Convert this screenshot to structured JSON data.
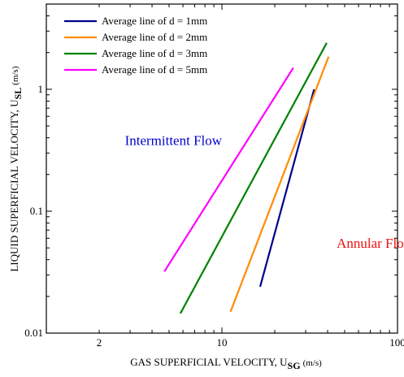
{
  "chart_data": {
    "type": "line",
    "x_scale": "log",
    "y_scale": "log",
    "xlim": [
      1,
      100
    ],
    "ylim": [
      0.01,
      5
    ],
    "x_ticks": [
      {
        "value": 2,
        "label": "2"
      },
      {
        "value": 10,
        "label": "10"
      },
      {
        "value": 100,
        "label": "100"
      }
    ],
    "y_ticks": [
      {
        "value": 0.01,
        "label": "0.01"
      },
      {
        "value": 0.1,
        "label": "0.1"
      },
      {
        "value": 1,
        "label": "1"
      }
    ],
    "xlabel": {
      "main": "GAS SUPERFICIAL VELOCITY, U",
      "sub": "SG",
      "unit": "(m/s)"
    },
    "ylabel": {
      "main": "LIQUID SUPERFICIAL VELOCITY, U",
      "sub": "SL",
      "unit": "(m/s)"
    },
    "grid": false,
    "legend": {
      "position": "top-left",
      "entries": [
        "Average line of d = 1mm",
        "Average line of d = 2mm",
        "Average line of d = 3mm",
        "Average line of d = 5mm"
      ]
    },
    "series": [
      {
        "name": "Average line of d = 1mm",
        "color": "#00008b",
        "points": [
          [
            16.5,
            0.024
          ],
          [
            33.5,
            1.0
          ]
        ]
      },
      {
        "name": "Average line of d = 2mm",
        "color": "#ff8c00",
        "points": [
          [
            11.2,
            0.015
          ],
          [
            40.5,
            1.85
          ]
        ]
      },
      {
        "name": "Average line of d = 3mm",
        "color": "#008000",
        "points": [
          [
            5.8,
            0.0145
          ],
          [
            39.5,
            2.4
          ]
        ]
      },
      {
        "name": "Average line of d = 5mm",
        "color": "#ff00ff",
        "points": [
          [
            4.7,
            0.032
          ],
          [
            25.5,
            1.5
          ]
        ]
      }
    ],
    "annotations": [
      {
        "text": "Intermittent Flow",
        "color": "#0000cc",
        "x": 2.8,
        "y": 0.35
      },
      {
        "text": "Annular Flow",
        "color": "#ee1111",
        "x": 45,
        "y": 0.05
      }
    ]
  }
}
